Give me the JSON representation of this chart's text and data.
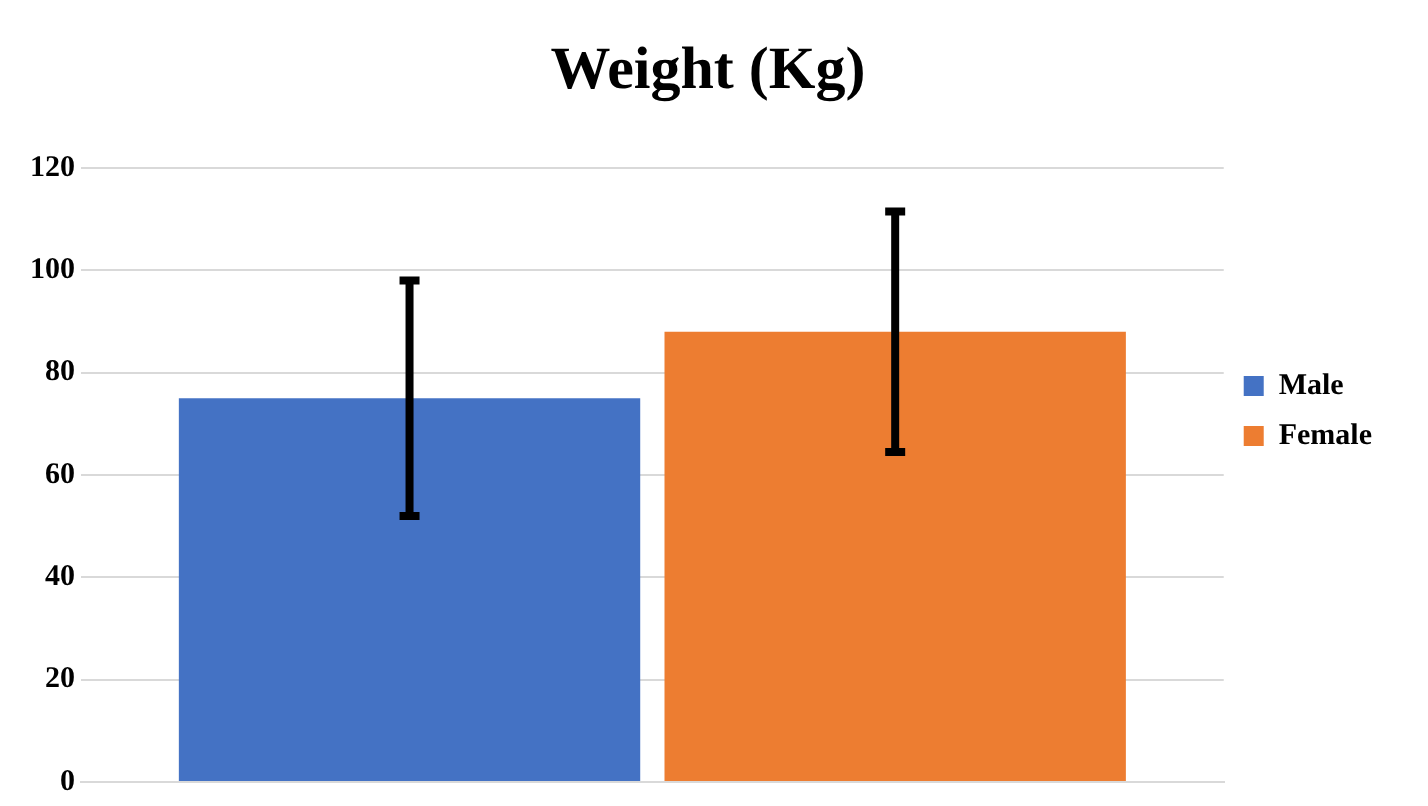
{
  "chart_data": {
    "type": "bar",
    "title": "Weight (Kg)",
    "categories": [
      null
    ],
    "series": [
      {
        "name": "Male",
        "color": "#4472c4",
        "values": [
          75
        ],
        "errors": [
          23
        ]
      },
      {
        "name": "Female",
        "color": "#ed7d31",
        "values": [
          88
        ],
        "errors": [
          23.5
        ]
      }
    ],
    "ylim": [
      0,
      120
    ],
    "yticks": [
      0,
      20,
      40,
      60,
      80,
      100,
      120
    ],
    "grid": "y",
    "legend": "right"
  }
}
